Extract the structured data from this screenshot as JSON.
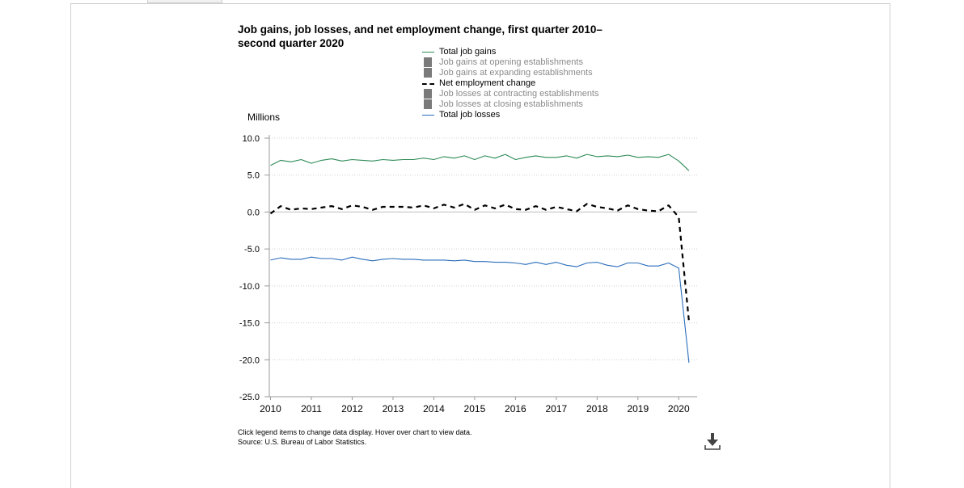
{
  "chart_data": {
    "type": "line",
    "title": "Job gains, job losses, and net employment change, first quarter 2010–second quarter 2020",
    "ylabel": "Millions",
    "xlabel": "",
    "ylim": [
      -25,
      10
    ],
    "yticks": [
      "10.0",
      "5.0",
      "0.0",
      "-5.0",
      "-10.0",
      "-15.0",
      "-20.0",
      "-25.0"
    ],
    "xticks": [
      "2010",
      "2011",
      "2012",
      "2013",
      "2014",
      "2015",
      "2016",
      "2017",
      "2018",
      "2019",
      "2020"
    ],
    "x_start": "2010 Q1",
    "quarters_per_year": 4,
    "grid": true,
    "legend_position": "top",
    "series": [
      {
        "name": "Total job gains",
        "color": "#2e8b57",
        "style": "solid",
        "active": true,
        "values": [
          6.3,
          7.0,
          6.8,
          7.1,
          6.6,
          7.0,
          7.2,
          6.9,
          7.1,
          7.0,
          6.9,
          7.1,
          7.0,
          7.1,
          7.1,
          7.3,
          7.1,
          7.5,
          7.3,
          7.6,
          7.1,
          7.6,
          7.3,
          7.8,
          7.1,
          7.4,
          7.6,
          7.4,
          7.4,
          7.6,
          7.3,
          7.8,
          7.5,
          7.6,
          7.5,
          7.7,
          7.4,
          7.5,
          7.4,
          7.8,
          6.9,
          5.6
        ]
      },
      {
        "name": "Job gains at opening establishments",
        "color": "#7a7a7a",
        "active": false
      },
      {
        "name": "Job gains at expanding establishments",
        "color": "#7a7a7a",
        "active": false
      },
      {
        "name": "Net employment change",
        "color": "#000000",
        "style": "dashed",
        "active": true,
        "values": [
          -0.2,
          0.8,
          0.3,
          0.5,
          0.4,
          0.6,
          0.8,
          0.4,
          0.9,
          0.7,
          0.3,
          0.7,
          0.7,
          0.7,
          0.6,
          0.9,
          0.5,
          1.0,
          0.6,
          1.1,
          0.3,
          0.9,
          0.5,
          1.0,
          0.4,
          0.3,
          0.8,
          0.3,
          0.7,
          0.4,
          0.1,
          1.1,
          0.7,
          0.5,
          0.2,
          0.9,
          0.4,
          0.2,
          0.1,
          0.9,
          -0.7,
          -14.8
        ]
      },
      {
        "name": "Job losses at contracting establishments",
        "color": "#7a7a7a",
        "active": false
      },
      {
        "name": "Job losses at closing establishments",
        "color": "#7a7a7a",
        "active": false
      },
      {
        "name": "Total job losses",
        "color": "#2a6ebb",
        "style": "solid",
        "active": true,
        "values": [
          -6.5,
          -6.2,
          -6.4,
          -6.4,
          -6.1,
          -6.3,
          -6.3,
          -6.5,
          -6.1,
          -6.4,
          -6.6,
          -6.4,
          -6.3,
          -6.4,
          -6.4,
          -6.5,
          -6.5,
          -6.5,
          -6.6,
          -6.5,
          -6.7,
          -6.7,
          -6.8,
          -6.8,
          -6.9,
          -7.1,
          -6.8,
          -7.1,
          -6.8,
          -7.2,
          -7.4,
          -6.9,
          -6.8,
          -7.2,
          -7.4,
          -6.9,
          -6.9,
          -7.3,
          -7.3,
          -6.9,
          -7.6,
          -20.4
        ]
      }
    ]
  },
  "footnote": {
    "line1": "Click legend items to change data display. Hover over chart to view data.",
    "line2": "Source: U.S. Bureau of Labor Statistics."
  },
  "icons": {
    "download": "download-icon"
  }
}
